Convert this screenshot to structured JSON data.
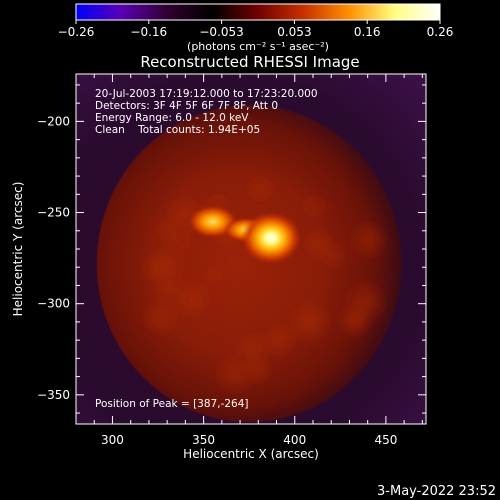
{
  "chart_data": {
    "type": "heatmap",
    "title": "Reconstructed RHESSI Image",
    "xlabel": "Heliocentric X (arcsec)",
    "ylabel": "Heliocentric Y (arcsec)",
    "x_range": [
      280,
      472
    ],
    "y_range": [
      -366,
      -174
    ],
    "x_ticks": [
      "300",
      "350",
      "400",
      "450"
    ],
    "y_ticks": [
      "-200",
      "-250",
      "-300",
      "-350"
    ],
    "colorbar": {
      "range": [
        -0.26,
        0.26
      ],
      "tick_labels": [
        "-0.26",
        "-0.16",
        "-0.053",
        "0.053",
        "0.16",
        "0.26"
      ],
      "unit_label": "(photons cm⁻² s⁻¹ asec⁻²)",
      "colors": [
        "#0000ff",
        "#5a00b4",
        "#300030",
        "#000000",
        "#700000",
        "#c83000",
        "#ff9000",
        "#ffff80",
        "#ffffff"
      ]
    },
    "annotations": {
      "time": "20-Jul-2003 17:19:12.000 to 17:23:20.000",
      "detectors": "Detectors: 3F 4F 5F 6F 7F 8F, Att 0",
      "energy": "Energy Range: 6.0 - 12.0 keV",
      "clean": "Clean    Total counts: 1.94E+05",
      "peak": "Position of Peak = [387,-264]"
    },
    "peak_position": [
      387,
      -264
    ],
    "sources": [
      {
        "x": 387,
        "y": -264,
        "level": 1.0
      },
      {
        "x": 355,
        "y": -255,
        "level": 0.8
      }
    ],
    "disk_center": [
      375,
      -278
    ],
    "disk_radius": 82
  },
  "footer": {
    "date": "3-May-2022 23:52"
  }
}
